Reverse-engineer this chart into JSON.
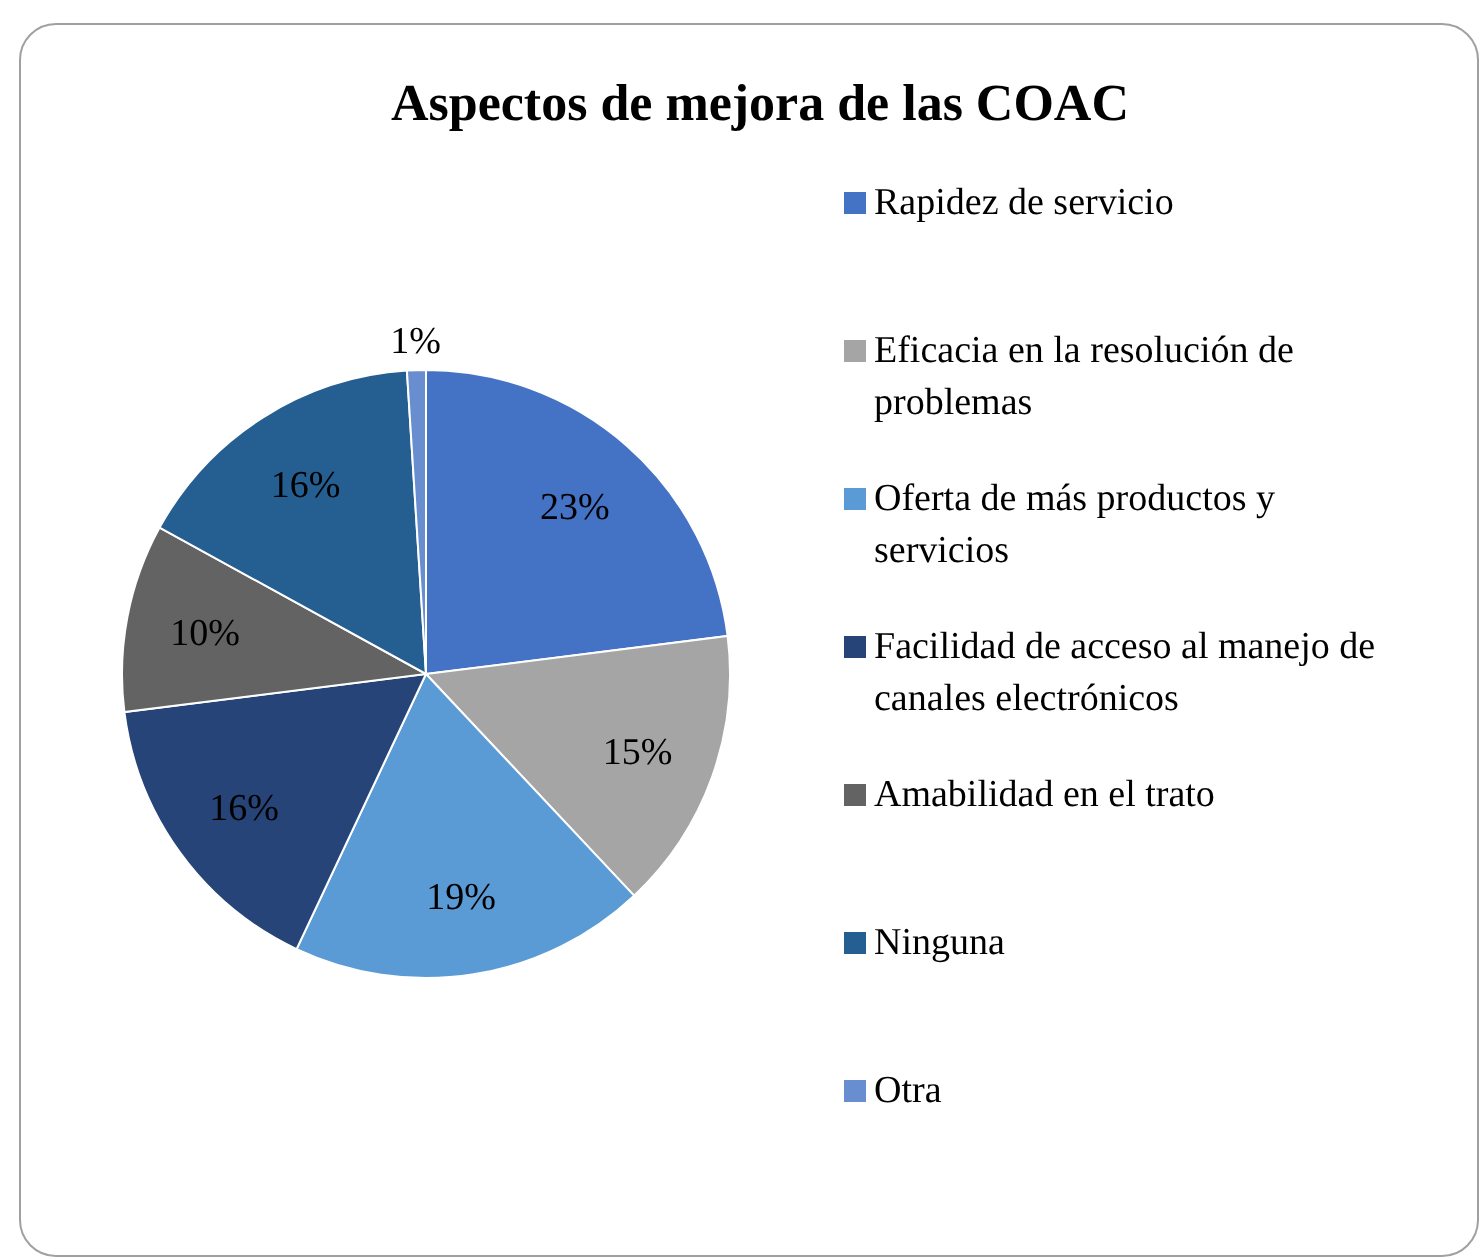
{
  "chart_data": {
    "type": "pie",
    "title": "Aspectos de mejora de las COAC",
    "categories": [
      "Rapidez de servicio",
      "Eficacia en la resolución de problemas",
      "Oferta de más productos y servicios",
      "Facilidad de acceso al manejo de canales electrónicos",
      "Amabilidad en el trato",
      "Ninguna",
      "Otra"
    ],
    "values": [
      23,
      15,
      19,
      16,
      10,
      16,
      1
    ],
    "colors": [
      "#4472c4",
      "#a5a5a5",
      "#5b9bd5",
      "#264478",
      "#636363",
      "#255e91",
      "#698ed0"
    ],
    "value_labels": [
      "23%",
      "15%",
      "19%",
      "16%",
      "10%",
      "16%",
      "1%"
    ],
    "legend": "right"
  }
}
